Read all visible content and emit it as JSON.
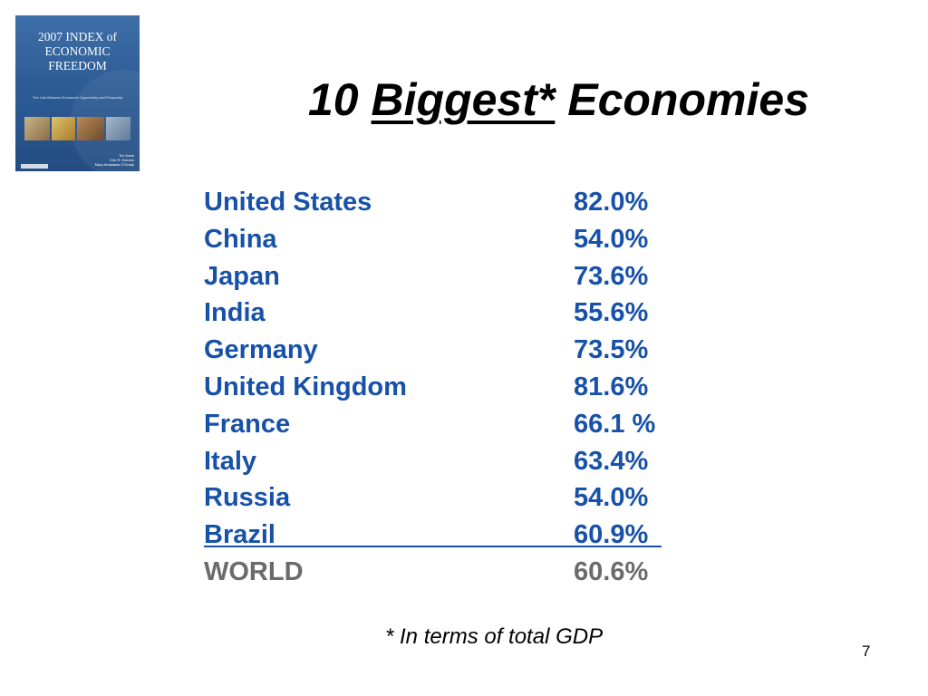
{
  "cover": {
    "title_line1": "2007 INDEX of",
    "title_line2": "ECONOMIC",
    "title_line3": "FREEDOM",
    "subtitle": "The Link Between Economic Opportunity and Prosperity",
    "authors": [
      "Tim Kane",
      "Kim R. Holmes",
      "Mary Anastasia O'Grady"
    ]
  },
  "title": {
    "prefix": "10 ",
    "underlined": "Biggest*",
    "suffix": " Economies"
  },
  "economies": [
    {
      "country": "United States",
      "value": "82.0%"
    },
    {
      "country": "China",
      "value": "54.0%"
    },
    {
      "country": "Japan",
      "value": "73.6%"
    },
    {
      "country": "India",
      "value": "55.6%"
    },
    {
      "country": "Germany",
      "value": "73.5%"
    },
    {
      "country": "United Kingdom",
      "value": "81.6%"
    },
    {
      "country": "France",
      "value": "66.1 %"
    },
    {
      "country": "Italy",
      "value": "63.4%"
    },
    {
      "country": "Russia",
      "value": "54.0%"
    },
    {
      "country": "Brazil",
      "value": "60.9%"
    }
  ],
  "world": {
    "label": "WORLD",
    "value": "60.6%"
  },
  "footnote": "* In terms of total GDP",
  "page_number": "7",
  "colors": {
    "list_text": "#1751a8",
    "world_text": "#6b6b6b"
  }
}
